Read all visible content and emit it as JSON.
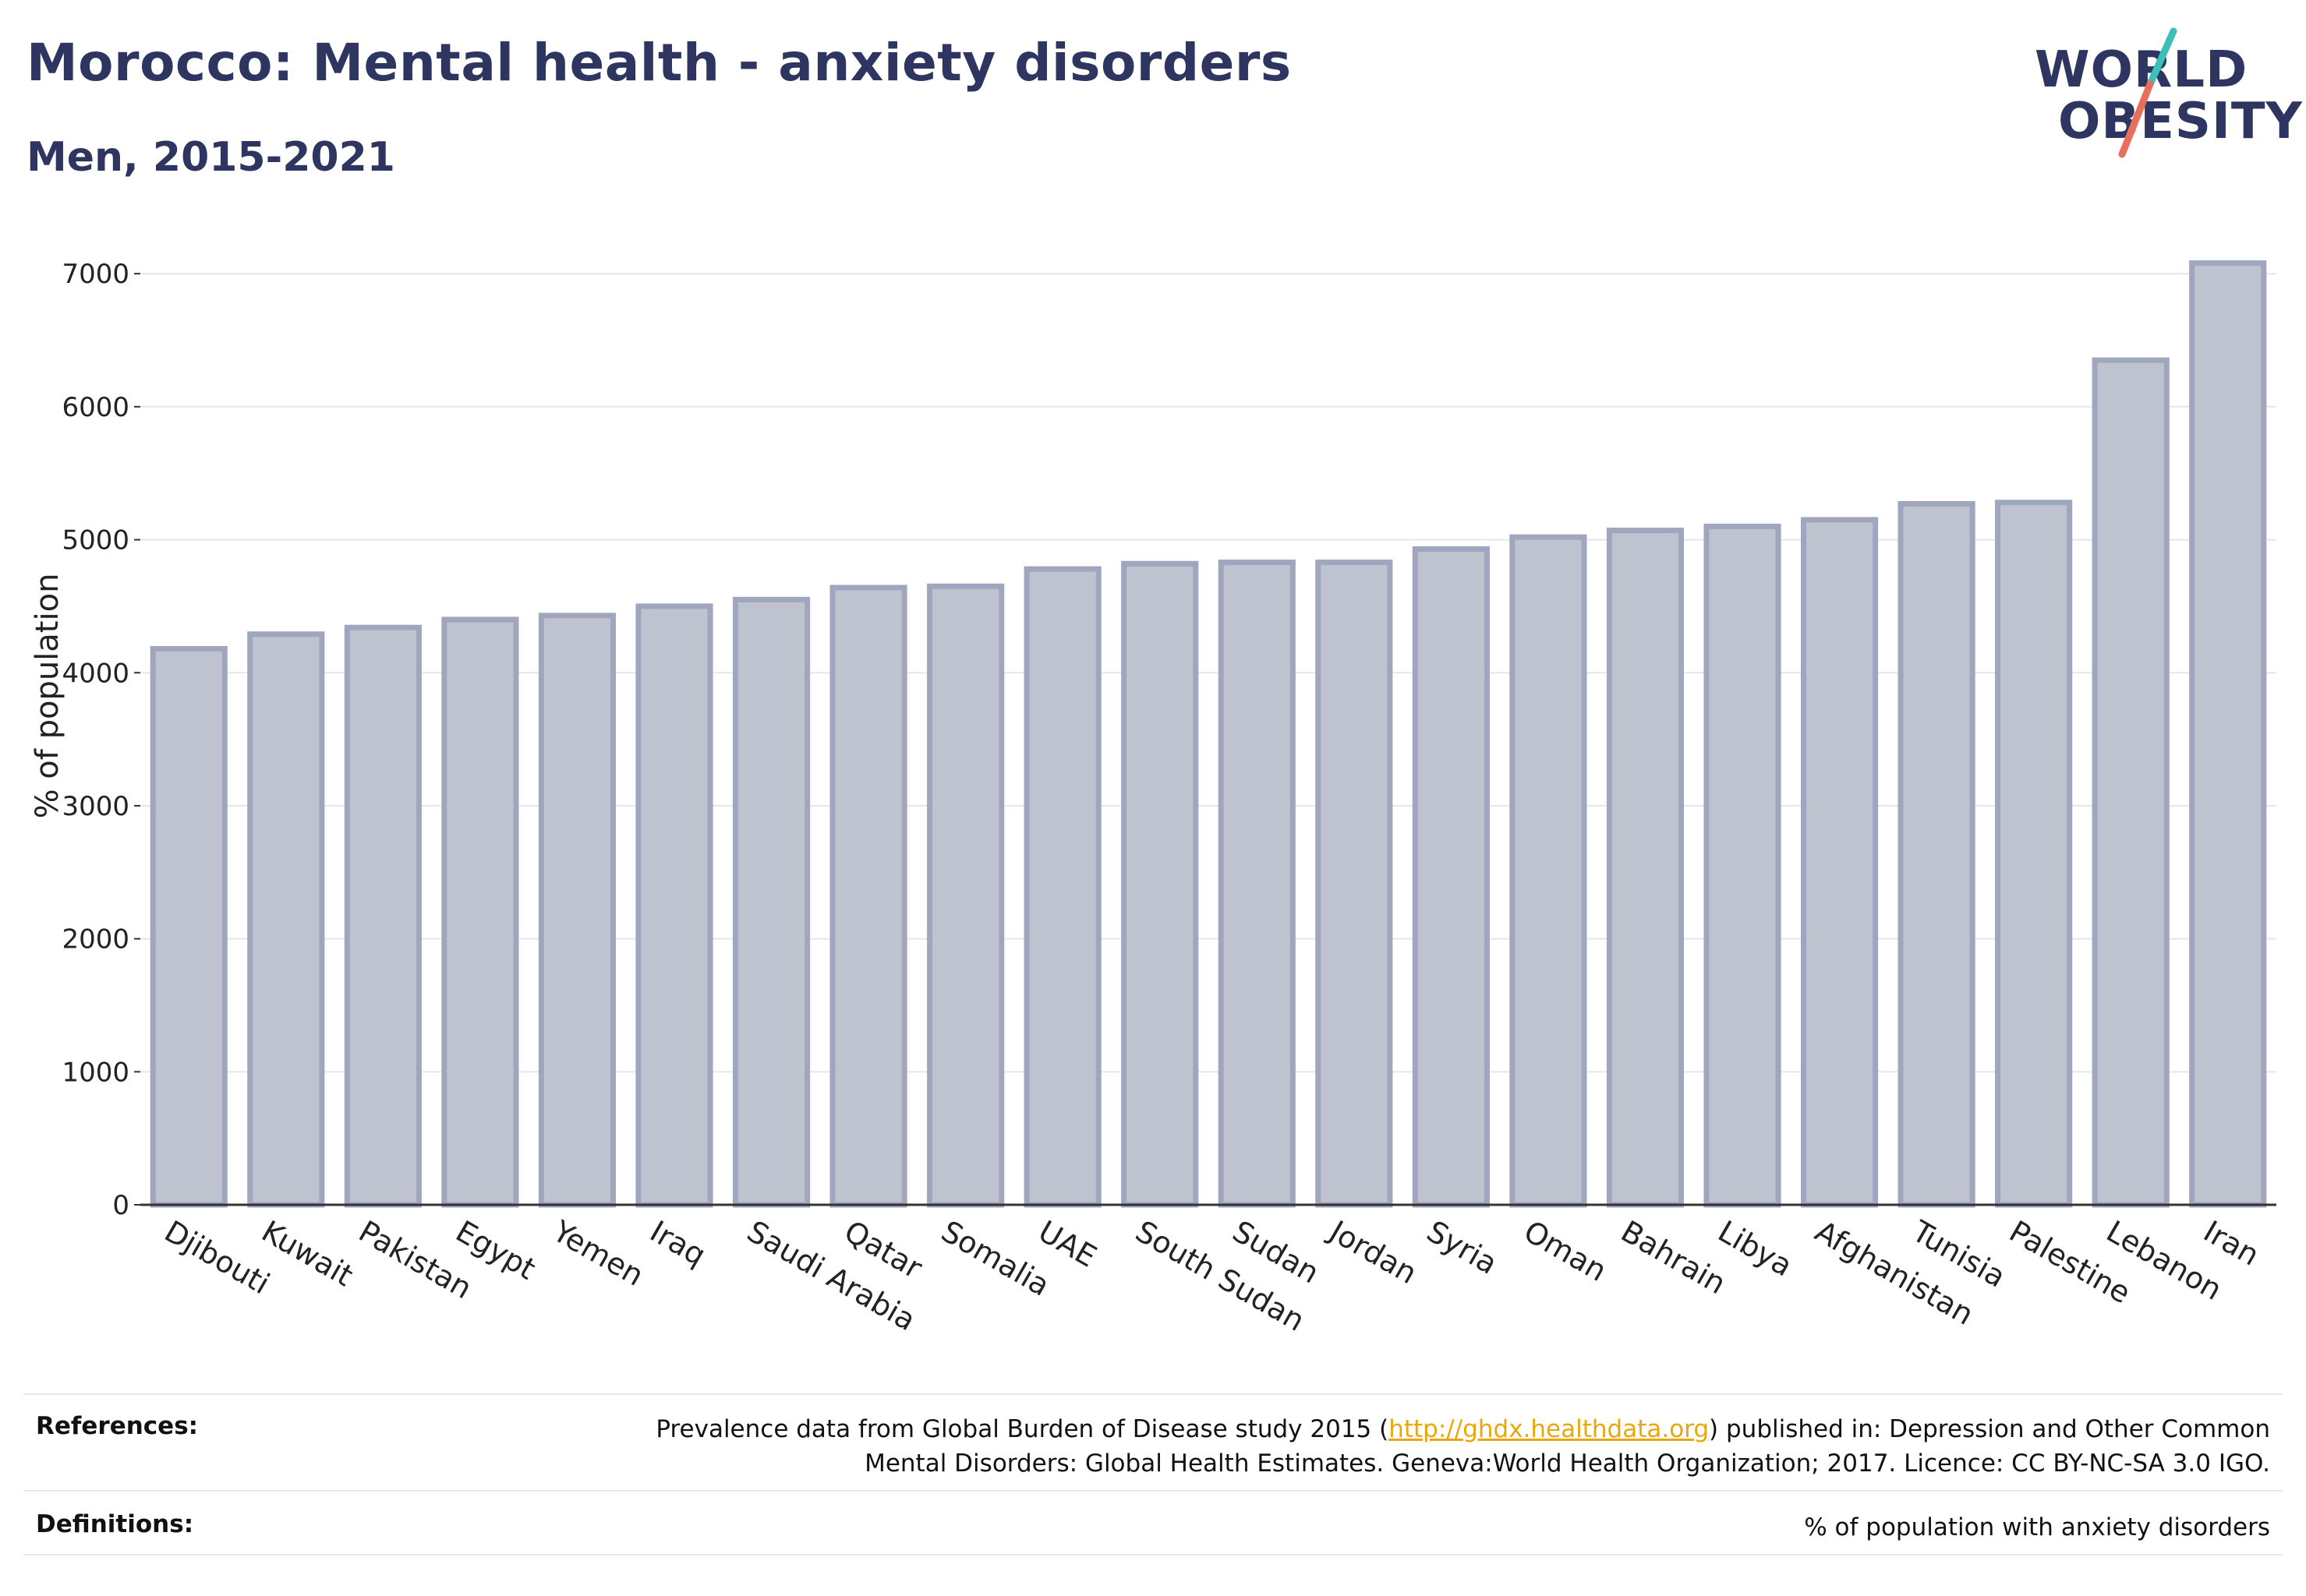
{
  "header": {
    "title": "Morocco: Mental health - anxiety disorders",
    "subtitle": "Men, 2015-2021"
  },
  "logo": {
    "line1": "WORLD",
    "line2": "OBESITY"
  },
  "colors": {
    "bar_fill": "#bfc3d0",
    "bar_stroke": "#a0a6bd",
    "title": "#2d3560",
    "grid": "#e5e7ec",
    "link": "#e8a80c",
    "logo_teal": "#3bbfb8",
    "logo_coral": "#e8705a"
  },
  "chart_data": {
    "type": "bar",
    "categories": [
      "Djibouti",
      "Kuwait",
      "Pakistan",
      "Egypt",
      "Yemen",
      "Iraq",
      "Saudi Arabia",
      "Qatar",
      "Somalia",
      "UAE",
      "South Sudan",
      "Sudan",
      "Jordan",
      "Syria",
      "Oman",
      "Bahrain",
      "Libya",
      "Afghanistan",
      "Tunisia",
      "Palestine",
      "Lebanon",
      "Iran"
    ],
    "values": [
      4180,
      4290,
      4340,
      4400,
      4430,
      4500,
      4550,
      4640,
      4650,
      4780,
      4820,
      4830,
      4830,
      4930,
      5020,
      5070,
      5100,
      5150,
      5270,
      5280,
      6350,
      7080
    ],
    "ylabel": "% of population",
    "xlabel": "",
    "ylim": [
      0,
      7000
    ],
    "yticks": [
      0,
      1000,
      2000,
      3000,
      4000,
      5000,
      6000,
      7000
    ],
    "grid": true,
    "legend": "none"
  },
  "footer": {
    "references_label": "References:",
    "references_pre": "Prevalence data from Global Burden of Disease study 2015 (",
    "references_link": "http://ghdx.healthdata.org",
    "references_post": ") published in: Depression and Other Common",
    "references_line2": "Mental Disorders: Global Health Estimates. Geneva:World Health Organization; 2017. Licence: CC BY-NC-SA 3.0 IGO.",
    "definitions_label": "Definitions:",
    "definitions_text": "% of population with anxiety disorders"
  }
}
